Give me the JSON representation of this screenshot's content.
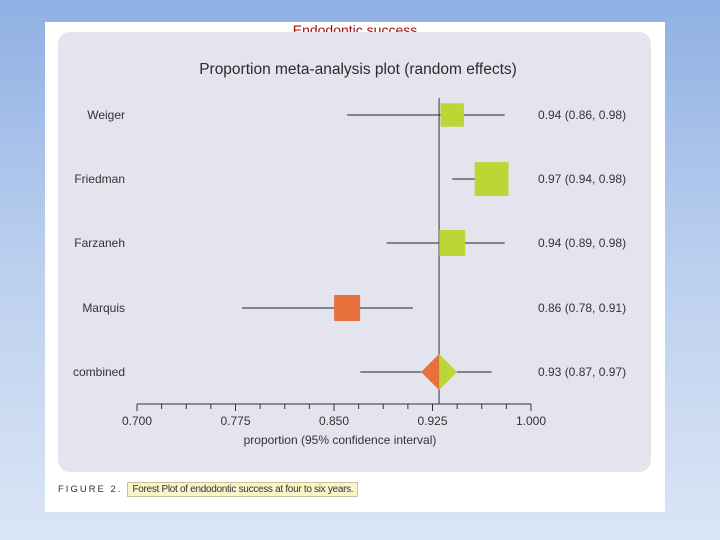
{
  "slide": {
    "title": "Endodontic success"
  },
  "caption": {
    "label": "FIGURE 2.",
    "text": "Forest Plot of endodontic success at four to six years."
  },
  "colors": {
    "study_marker": "#bcd635",
    "low_marker": "#e8703a",
    "panel": "#e4e4ef"
  },
  "chart_data": {
    "type": "forest",
    "title": "Proportion meta-analysis plot (random effects)",
    "xlabel": "proportion (95% confidence interval)",
    "xlim": [
      0.7,
      1.0
    ],
    "x_ticks": [
      "0.700",
      "0.775",
      "0.850",
      "0.925",
      "1.000"
    ],
    "reference_line": 0.93,
    "studies": [
      {
        "name": "Weiger",
        "estimate": 0.94,
        "ci": [
          0.86,
          0.98
        ],
        "label": "0.94 (0.86, 0.98)",
        "marker": "square",
        "color": "#bcd635",
        "weight": 0.9
      },
      {
        "name": "Friedman",
        "estimate": 0.97,
        "ci": [
          0.94,
          0.98
        ],
        "label": "0.97 (0.94, 0.98)",
        "marker": "square",
        "color": "#bcd635",
        "weight": 1.3
      },
      {
        "name": "Farzaneh",
        "estimate": 0.94,
        "ci": [
          0.89,
          0.98
        ],
        "label": "0.94 (0.89, 0.98)",
        "marker": "square",
        "color": "#bcd635",
        "weight": 1.0
      },
      {
        "name": "Marquis",
        "estimate": 0.86,
        "ci": [
          0.78,
          0.91
        ],
        "label": "0.86 (0.78, 0.91)",
        "marker": "square",
        "color": "#e8703a",
        "weight": 1.0
      },
      {
        "name": "combined",
        "estimate": 0.93,
        "ci": [
          0.87,
          0.97
        ],
        "label": "0.93 (0.87, 0.97)",
        "marker": "diamond",
        "color": "#bcd635",
        "color_left": "#e8703a"
      }
    ]
  }
}
